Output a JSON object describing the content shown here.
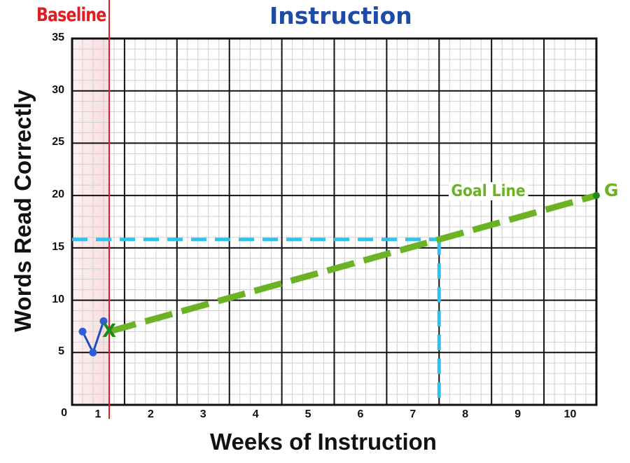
{
  "titles": {
    "baseline": "Baseline",
    "instruction": "Instruction"
  },
  "axes": {
    "ylabel": "Words Read Correctly",
    "xlabel": "Weeks of Instruction",
    "yticks": [
      "0",
      "5",
      "10",
      "15",
      "20",
      "25",
      "30",
      "35"
    ],
    "xticks": [
      "1",
      "2",
      "3",
      "4",
      "5",
      "6",
      "7",
      "8",
      "9",
      "10"
    ]
  },
  "annotations": {
    "goal_line": "Goal Line",
    "goal_marker": "G",
    "start_marker": "X"
  },
  "colors": {
    "baseline": "#e31b23",
    "baseline_shade": "#fbe3e4",
    "instruction": "#1f4ba8",
    "data_points": "#2f5fd6",
    "goal_line": "#6bb324",
    "goal_point": "#1e8a1e",
    "reference_line": "#29c4ef",
    "major_grid": "#111111",
    "minor_grid": "#d0d0d0"
  },
  "chart_data": {
    "type": "line",
    "title": "Baseline / Instruction",
    "xlabel": "Weeks of Instruction",
    "ylabel": "Words Read Correctly",
    "xlim": [
      0.5,
      10.5
    ],
    "ylim": [
      0,
      35
    ],
    "grid": true,
    "major_y_step": 5,
    "minor_y_step": 1,
    "minor_x_divisions_per_week": 5,
    "baseline_end_x": 1.2,
    "series": [
      {
        "name": "Baseline scores",
        "style": "solid line with dots",
        "x": [
          0.7,
          0.9,
          1.1
        ],
        "y": [
          7,
          5,
          8
        ]
      },
      {
        "name": "Goal Line",
        "style": "dashed",
        "x": [
          1.2,
          10.5
        ],
        "y": [
          7,
          20
        ]
      }
    ],
    "markers": [
      {
        "label": "X",
        "x": 1.2,
        "y": 7,
        "meaning": "median baseline start point"
      },
      {
        "label": "G",
        "x": 10.5,
        "y": 20,
        "meaning": "goal"
      }
    ],
    "reference_lines": [
      {
        "orientation": "horizontal",
        "y": 15.8,
        "from_x": 0.5,
        "to_x": 7.5,
        "style": "dashed",
        "color": "cyan"
      },
      {
        "orientation": "vertical",
        "x": 7.5,
        "from_y": 0,
        "to_y": 15.8,
        "style": "dashed",
        "color": "cyan"
      }
    ],
    "annotations": [
      "Baseline",
      "Instruction",
      "Goal Line",
      "G",
      "X"
    ]
  }
}
